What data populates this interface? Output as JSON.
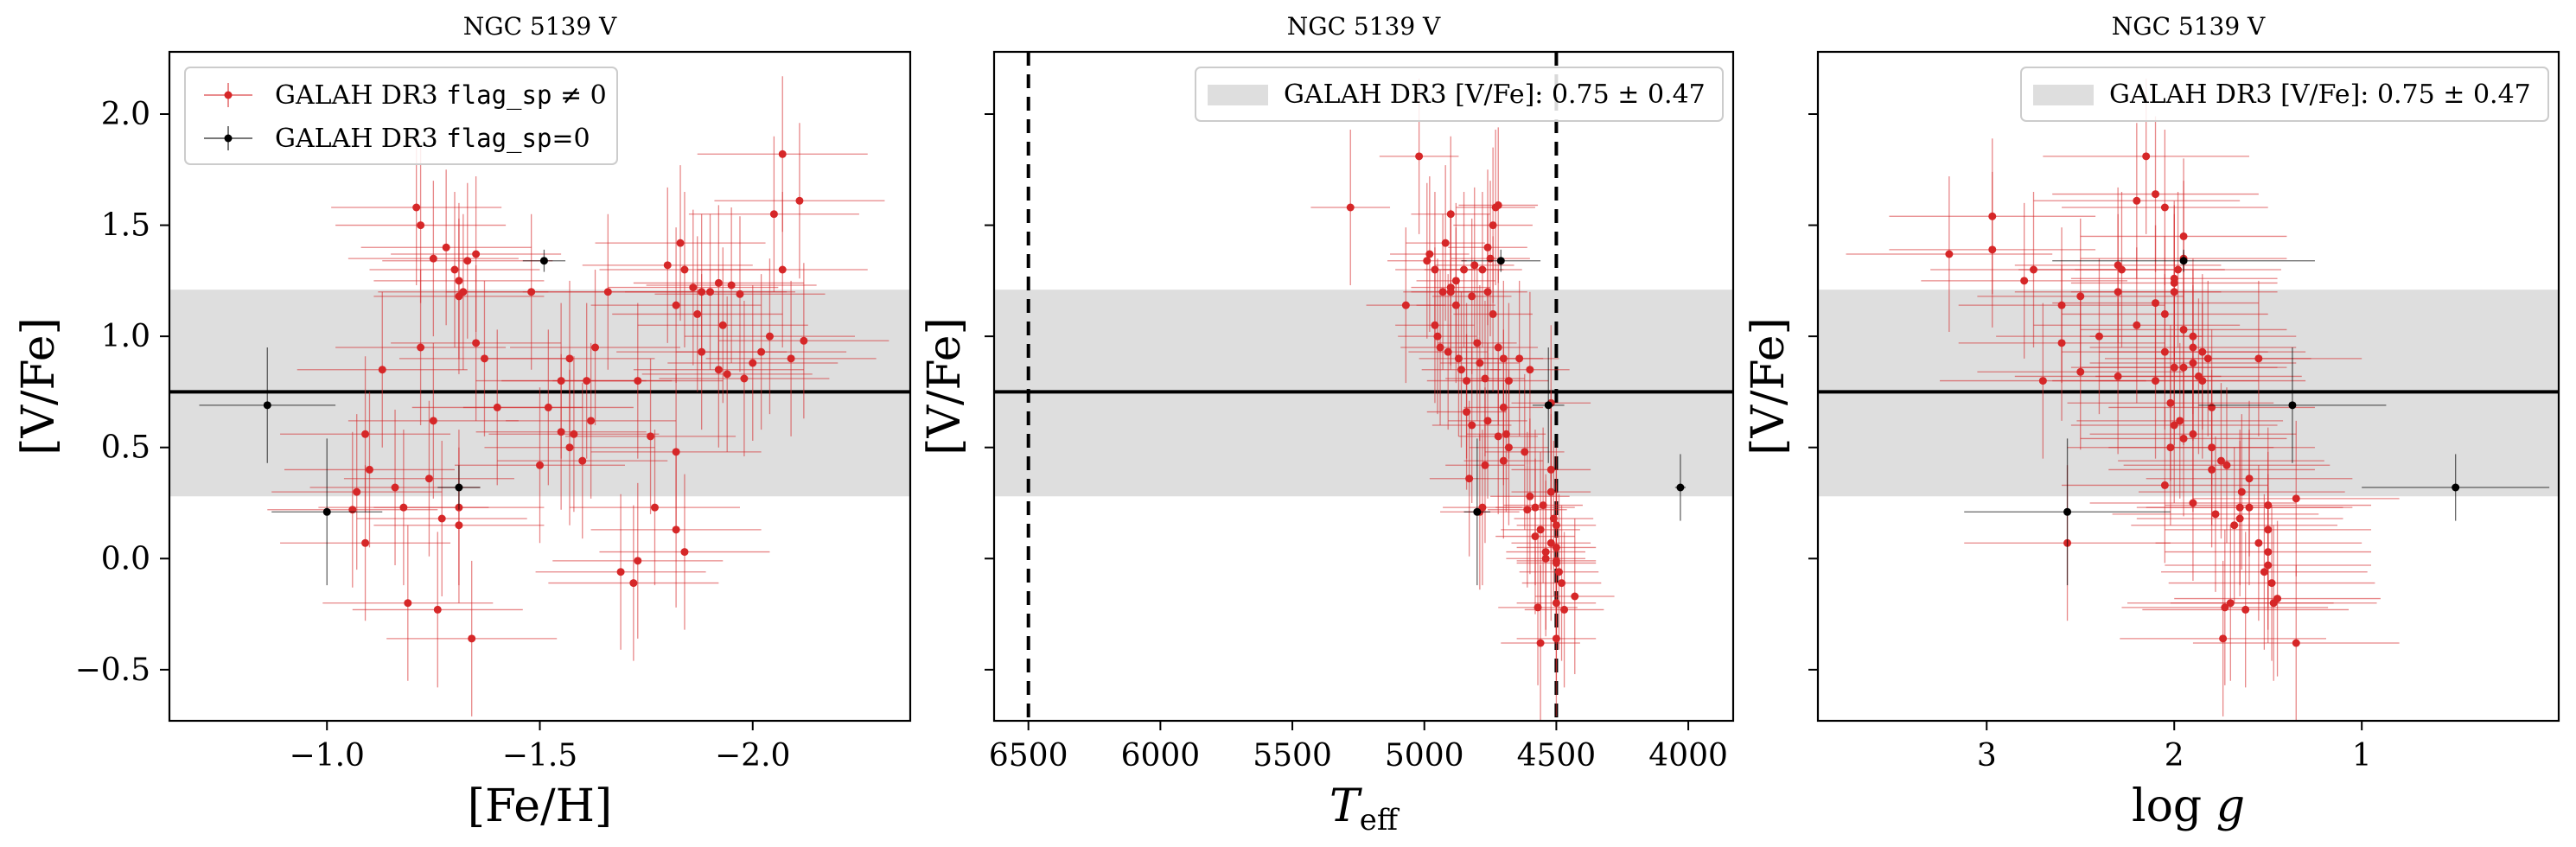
{
  "colors": {
    "flagged": "#d62728",
    "unflagged": "#000000",
    "band": "#dedede",
    "frame": "#000000"
  },
  "legend": {
    "flagged_label_prefix": "GALAH DR3 ",
    "flagged_label_code": "flag_sp",
    "flagged_label_suffix": " ≠ 0",
    "unflagged_label_prefix": "GALAH DR3 ",
    "unflagged_label_code": "flag_sp",
    "unflagged_label_suffix": "=0",
    "band_label_text": "GALAH DR3 [V/Fe]:",
    "band_label_value": "0.75 ± 0.47"
  },
  "chart_data": [
    {
      "type": "scatter",
      "title": "NGC 5139 V",
      "xlabel": "[Fe/H]",
      "ylabel": "[V/Fe]",
      "xlim": [
        -0.63,
        -2.37
      ],
      "ylim": [
        -0.73,
        2.28
      ],
      "xticks": [
        -1.0,
        -1.5,
        -2.0
      ],
      "xtick_labels": [
        "−1.0",
        "−1.5",
        "−2.0"
      ],
      "yticks": [
        -0.5,
        0.0,
        0.5,
        1.0,
        1.5,
        2.0
      ],
      "ytick_labels": [
        "−0.5",
        "0.0",
        "0.5",
        "1.0",
        "1.5",
        "2.0"
      ],
      "hline": 0.75,
      "band": [
        0.28,
        1.21
      ],
      "legend": "top-left",
      "series": [
        {
          "name": "GALAH DR3 flag_sp ≠ 0",
          "x": [
            -1.48,
            -1.37,
            -1.73,
            -1.82,
            -1.76,
            -1.35,
            -1.22,
            -1.24,
            -1.18,
            -1.09,
            -1.27,
            -1.26,
            -1.34,
            -1.19,
            -1.35,
            -1.33,
            -1.32,
            -1.31,
            -1.31,
            -1.3,
            -1.28,
            -1.25,
            -1.22,
            -1.21,
            -1.1,
            -1.16,
            -1.09,
            -1.13,
            -1.25,
            -1.4,
            -1.31,
            -1.31,
            -1.06,
            -1.07,
            -1.52,
            -1.55,
            -1.57,
            -1.5,
            -1.55,
            -1.58,
            -1.62,
            -1.6,
            -1.57,
            -1.61,
            -1.63,
            -1.66,
            -1.83,
            -1.84,
            -1.86,
            -1.88,
            -1.95,
            -1.92,
            -1.9,
            -1.87,
            -1.93,
            -1.97,
            -1.88,
            -1.98,
            -1.92,
            -2.0,
            -2.09,
            -2.02,
            -2.04,
            -1.94,
            -2.12,
            -2.05,
            -2.07,
            -2.11,
            -2.07,
            -1.8,
            -1.82,
            -1.77,
            -1.82,
            -1.84,
            -1.72,
            -1.69,
            -1.73
          ],
          "y": [
            1.2,
            0.9,
            0.8,
            1.14,
            0.55,
            0.97,
            0.95,
            0.36,
            0.23,
            0.07,
            0.18,
            -0.23,
            -0.36,
            -0.2,
            1.37,
            1.34,
            1.2,
            1.25,
            1.18,
            1.3,
            1.4,
            1.35,
            1.5,
            1.58,
            0.4,
            0.32,
            0.56,
            0.85,
            0.62,
            0.68,
            0.23,
            0.15,
            0.22,
            0.3,
            0.68,
            0.57,
            0.5,
            0.42,
            0.8,
            0.56,
            0.62,
            0.44,
            0.9,
            0.8,
            0.95,
            1.2,
            1.42,
            1.3,
            1.22,
            1.2,
            1.23,
            1.24,
            1.2,
            1.1,
            1.05,
            1.19,
            0.93,
            0.81,
            0.85,
            0.88,
            0.9,
            0.93,
            1.0,
            0.83,
            0.98,
            1.55,
            1.82,
            1.61,
            1.3,
            1.32,
            0.48,
            0.23,
            0.13,
            0.03,
            -0.11,
            -0.06,
            -0.01
          ],
          "xerr": 0.2,
          "yerr": 0.35
        },
        {
          "name": "GALAH DR3 flag_sp=0",
          "x": [
            -0.86,
            -1.0,
            -1.31,
            -1.51
          ],
          "y": [
            0.69,
            0.21,
            0.32,
            1.34
          ],
          "xerr": [
            0.16,
            0.13,
            0.05,
            0.05
          ],
          "yerr": [
            0.26,
            0.33,
            0.1,
            0.05
          ]
        }
      ]
    },
    {
      "type": "scatter",
      "title": "NGC 5139 V",
      "xlabel": "T_eff",
      "ylabel": "[V/Fe]",
      "xlim": [
        6630,
        3830
      ],
      "ylim": [
        -0.73,
        2.28
      ],
      "xticks": [
        6500,
        6000,
        5500,
        5000,
        4500,
        4000
      ],
      "xtick_labels": [
        "6500",
        "6000",
        "5500",
        "5000",
        "4500",
        "4000"
      ],
      "yticks": [
        -0.5,
        0.0,
        0.5,
        1.0,
        1.5,
        2.0
      ],
      "vlines": [
        6500,
        4500
      ],
      "hline": 0.75,
      "band": [
        0.28,
        1.21
      ],
      "legend": "top-right",
      "series": [
        {
          "name": "GALAH DR3 flag_sp ≠ 0",
          "x": [
            5280,
            5070,
            5020,
            4960,
            4990,
            4980,
            4900,
            4880,
            4820,
            4780,
            4760,
            4750,
            4740,
            4730,
            4720,
            4810,
            4850,
            4930,
            4960,
            4950,
            4940,
            4910,
            4870,
            4860,
            4840,
            4800,
            4790,
            4770,
            4760,
            4700,
            4690,
            4680,
            4700,
            4720,
            4700,
            4680,
            4720,
            4640,
            4600,
            4620,
            4580,
            4560,
            4540,
            4520,
            4510,
            4500,
            4490,
            4480,
            4470,
            4500,
            4500,
            4560,
            4570,
            4610,
            4600,
            4520,
            4430,
            4780,
            4790,
            4770,
            4830,
            4820,
            4840,
            4880,
            4900,
            4920,
            4900,
            4740,
            4760,
            4580,
            4540,
            4500,
            4500,
            4500,
            4520,
            4520,
            4550
          ],
          "y": [
            1.58,
            1.14,
            1.81,
            1.3,
            1.34,
            1.37,
            1.2,
            1.25,
            1.18,
            1.3,
            1.4,
            1.35,
            1.5,
            1.58,
            1.59,
            1.32,
            1.3,
            1.2,
            1.05,
            1.0,
            0.95,
            0.93,
            0.9,
            0.85,
            0.8,
            0.97,
            0.88,
            0.81,
            0.62,
            0.68,
            0.56,
            0.5,
            0.44,
            0.55,
            0.9,
            0.8,
            0.95,
            0.9,
            0.85,
            0.48,
            0.23,
            0.13,
            0.03,
            0.07,
            0.18,
            -0.01,
            -0.06,
            -0.11,
            -0.23,
            -0.2,
            -0.36,
            -0.38,
            -0.22,
            0.22,
            0.28,
            0.3,
            -0.17,
            0.23,
            0.21,
            0.42,
            0.36,
            0.6,
            0.66,
            1.14,
            1.22,
            1.42,
            1.55,
            1.1,
            1.2,
            0.1,
            0.0,
            -0.02,
            0.05,
            0.15,
            0.4,
            0.7,
            0.24
          ],
          "xerr": 150,
          "yerr": 0.35
        },
        {
          "name": "GALAH DR3 flag_sp=0",
          "x": [
            4710,
            4530,
            4800,
            4030
          ],
          "y": [
            1.34,
            0.69,
            0.21,
            0.32
          ],
          "xerr": [
            150,
            60,
            50,
            20
          ],
          "yerr": [
            0.05,
            0.26,
            0.33,
            0.15
          ]
        }
      ]
    },
    {
      "type": "scatter",
      "title": "NGC 5139 V",
      "xlabel": "log g",
      "ylabel": "[V/Fe]",
      "xlim": [
        3.9,
        -0.05
      ],
      "ylim": [
        -0.73,
        2.28
      ],
      "xticks": [
        3,
        2,
        1
      ],
      "xtick_labels": [
        "3",
        "2",
        "1"
      ],
      "yticks": [
        -0.5,
        0.0,
        0.5,
        1.0,
        1.5,
        2.0
      ],
      "hline": 0.75,
      "band": [
        0.28,
        1.21
      ],
      "legend": "top-right",
      "series": [
        {
          "name": "GALAH DR3 flag_sp ≠ 0",
          "x": [
            3.2,
            2.97,
            2.97,
            2.75,
            2.8,
            2.6,
            2.5,
            2.3,
            2.28,
            2.3,
            2.2,
            2.05,
            2.1,
            2.0,
            2.0,
            2.0,
            1.98,
            1.95,
            2.05,
            2.2,
            2.4,
            2.6,
            2.7,
            2.5,
            2.3,
            2.1,
            2.05,
            2.0,
            2.02,
            1.97,
            1.9,
            1.95,
            1.87,
            1.85,
            1.9,
            1.8,
            1.95,
            1.8,
            1.75,
            1.72,
            1.6,
            1.64,
            1.6,
            1.65,
            1.55,
            1.5,
            1.5,
            1.5,
            1.52,
            1.48,
            1.47,
            1.62,
            1.7,
            1.74,
            1.73,
            1.68,
            1.65,
            1.35,
            2.15,
            2.1,
            1.95,
            1.9,
            1.9,
            1.82,
            1.85,
            1.8,
            1.78,
            1.9,
            2.0,
            2.57,
            2.05,
            2.02,
            1.95,
            1.45,
            1.5,
            1.55,
            1.35
          ],
          "y": [
            1.37,
            1.54,
            1.39,
            1.3,
            1.25,
            1.14,
            1.18,
            1.32,
            1.3,
            1.2,
            1.05,
            1.1,
            1.15,
            1.2,
            1.24,
            1.26,
            1.3,
            1.35,
            1.58,
            1.61,
            1.0,
            0.97,
            0.8,
            0.84,
            0.82,
            0.8,
            0.93,
            0.86,
            0.7,
            0.62,
            0.88,
            0.86,
            0.82,
            0.93,
            0.56,
            0.68,
            0.54,
            0.5,
            0.44,
            0.42,
            0.36,
            0.3,
            0.23,
            0.18,
            0.07,
            0.13,
            -0.03,
            0.03,
            -0.06,
            -0.11,
            -0.2,
            -0.23,
            -0.2,
            -0.36,
            -0.22,
            0.15,
            0.23,
            0.27,
            1.81,
            1.64,
            1.45,
            1.0,
            0.95,
            0.9,
            0.8,
            0.4,
            0.2,
            0.25,
            0.6,
            0.07,
            0.33,
            0.5,
            1.03,
            -0.18,
            0.24,
            0.9,
            -0.38
          ],
          "xerr": 0.55,
          "yerr": 0.35
        },
        {
          "name": "GALAH DR3 flag_sp=0",
          "x": [
            1.95,
            1.37,
            2.57,
            0.5
          ],
          "y": [
            1.34,
            0.69,
            0.21,
            0.32
          ],
          "xerr": [
            0.7,
            0.5,
            0.55,
            0.5
          ],
          "yerr": [
            0.05,
            0.26,
            0.33,
            0.15
          ]
        }
      ]
    }
  ]
}
